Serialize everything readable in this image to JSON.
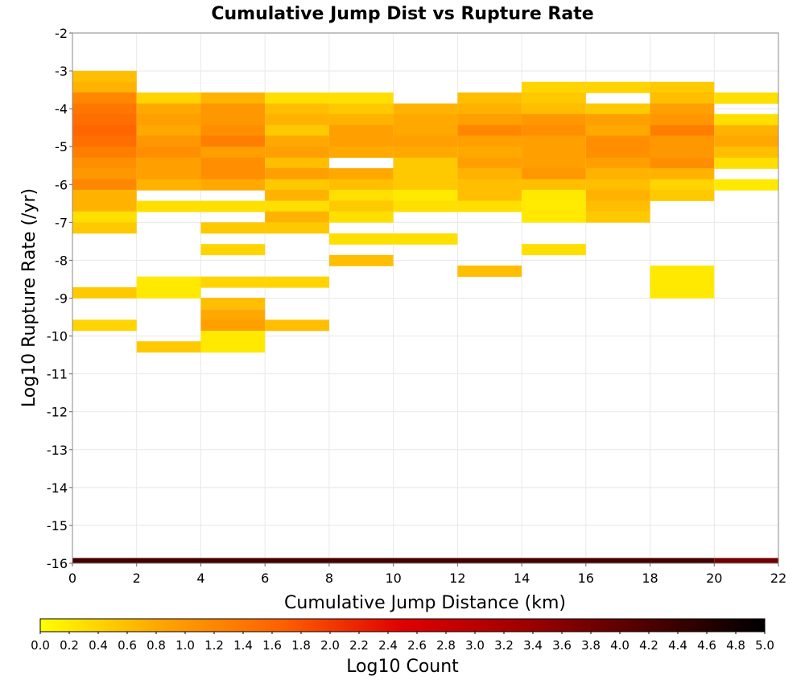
{
  "chart_data": {
    "type": "heatmap",
    "title": "Cumulative Jump Dist vs Rupture Rate",
    "xlabel": "Cumulative Jump Distance (km)",
    "ylabel": "Log10 Rupture Rate (/yr)",
    "xlim": [
      0,
      22
    ],
    "ylim": [
      -16,
      -2
    ],
    "xticks": [
      "0",
      "2",
      "4",
      "6",
      "8",
      "10",
      "12",
      "14",
      "16",
      "18",
      "20",
      "22"
    ],
    "yticks": [
      "-2",
      "-3",
      "-4",
      "-5",
      "-6",
      "-7",
      "-8",
      "-9",
      "-10",
      "-11",
      "-12",
      "-13",
      "-14",
      "-15",
      "-16"
    ],
    "grid": true,
    "colorbar": {
      "label": "Log10 Count",
      "range": [
        0.0,
        5.0
      ],
      "ticks": [
        "0.0",
        "0.2",
        "0.4",
        "0.6",
        "0.8",
        "1.0",
        "1.2",
        "1.4",
        "1.6",
        "1.8",
        "2.0",
        "2.2",
        "2.4",
        "2.6",
        "2.8",
        "3.0",
        "3.2",
        "3.4",
        "3.6",
        "3.8",
        "4.0",
        "4.2",
        "4.4",
        "4.6",
        "4.8",
        "5.0"
      ],
      "colors": [
        "#ffff00",
        "#ffa500",
        "#ff6000",
        "#e00000",
        "#a00000",
        "#500000",
        "#000000"
      ]
    },
    "x_bin_width": 2,
    "y_bin_height": 0.286,
    "columns": [
      {
        "x0": 0,
        "cells": [
          {
            "y": -3.0,
            "v": 0.6
          },
          {
            "y": -3.29,
            "v": 0.7
          },
          {
            "y": -3.57,
            "v": 1.2
          },
          {
            "y": -3.86,
            "v": 1.4
          },
          {
            "y": -4.14,
            "v": 1.5
          },
          {
            "y": -4.43,
            "v": 1.6
          },
          {
            "y": -4.71,
            "v": 1.5
          },
          {
            "y": -5.0,
            "v": 1.3
          },
          {
            "y": -5.29,
            "v": 1.1
          },
          {
            "y": -5.57,
            "v": 1.0
          },
          {
            "y": -5.86,
            "v": 1.2
          },
          {
            "y": -6.14,
            "v": 0.7
          },
          {
            "y": -6.43,
            "v": 0.7
          },
          {
            "y": -6.71,
            "v": 0.3
          },
          {
            "y": -7.0,
            "v": 0.5
          },
          {
            "y": -8.71,
            "v": 0.5
          },
          {
            "y": -9.57,
            "v": 0.4
          }
        ]
      },
      {
        "x0": 2,
        "cells": [
          {
            "y": -3.57,
            "v": 0.4
          },
          {
            "y": -3.86,
            "v": 0.8
          },
          {
            "y": -4.14,
            "v": 0.9
          },
          {
            "y": -4.43,
            "v": 0.8
          },
          {
            "y": -4.71,
            "v": 1.0
          },
          {
            "y": -5.0,
            "v": 1.1
          },
          {
            "y": -5.29,
            "v": 0.9
          },
          {
            "y": -5.57,
            "v": 0.9
          },
          {
            "y": -5.86,
            "v": 0.7
          },
          {
            "y": -6.43,
            "v": 0.3
          },
          {
            "y": -8.43,
            "v": 0.2
          },
          {
            "y": -8.71,
            "v": 0.2
          },
          {
            "y": -10.14,
            "v": 0.5
          }
        ]
      },
      {
        "x0": 4,
        "cells": [
          {
            "y": -3.57,
            "v": 0.7
          },
          {
            "y": -3.86,
            "v": 1.0
          },
          {
            "y": -4.14,
            "v": 1.0
          },
          {
            "y": -4.43,
            "v": 1.1
          },
          {
            "y": -4.71,
            "v": 1.3
          },
          {
            "y": -5.0,
            "v": 0.9
          },
          {
            "y": -5.29,
            "v": 1.1
          },
          {
            "y": -5.57,
            "v": 1.1
          },
          {
            "y": -5.86,
            "v": 0.8
          },
          {
            "y": -6.43,
            "v": 0.3
          },
          {
            "y": -7.0,
            "v": 0.5
          },
          {
            "y": -7.57,
            "v": 0.4
          },
          {
            "y": -8.43,
            "v": 0.4
          },
          {
            "y": -8.99,
            "v": 0.6
          },
          {
            "y": -9.29,
            "v": 0.8
          },
          {
            "y": -9.57,
            "v": 0.9
          },
          {
            "y": -9.86,
            "v": 0.2
          },
          {
            "y": -10.14,
            "v": 0.2
          }
        ]
      },
      {
        "x0": 6,
        "cells": [
          {
            "y": -3.57,
            "v": 0.3
          },
          {
            "y": -3.86,
            "v": 0.6
          },
          {
            "y": -4.14,
            "v": 0.7
          },
          {
            "y": -4.43,
            "v": 0.5
          },
          {
            "y": -4.71,
            "v": 0.8
          },
          {
            "y": -5.0,
            "v": 0.9
          },
          {
            "y": -5.29,
            "v": 0.6
          },
          {
            "y": -5.57,
            "v": 0.9
          },
          {
            "y": -5.86,
            "v": 0.5
          },
          {
            "y": -6.14,
            "v": 0.7
          },
          {
            "y": -6.43,
            "v": 0.3
          },
          {
            "y": -6.71,
            "v": 0.7
          },
          {
            "y": -7.0,
            "v": 0.5
          },
          {
            "y": -8.43,
            "v": 0.4
          },
          {
            "y": -9.57,
            "v": 0.6
          }
        ]
      },
      {
        "x0": 8,
        "cells": [
          {
            "y": -3.57,
            "v": 0.3
          },
          {
            "y": -3.86,
            "v": 0.5
          },
          {
            "y": -4.14,
            "v": 0.7
          },
          {
            "y": -4.43,
            "v": 0.9
          },
          {
            "y": -4.71,
            "v": 0.9
          },
          {
            "y": -5.0,
            "v": 0.8
          },
          {
            "y": -5.57,
            "v": 0.8
          },
          {
            "y": -5.86,
            "v": 0.6
          },
          {
            "y": -6.14,
            "v": 0.3
          },
          {
            "y": -6.43,
            "v": 0.5
          },
          {
            "y": -6.71,
            "v": 0.3
          },
          {
            "y": -7.29,
            "v": 0.3
          },
          {
            "y": -7.86,
            "v": 0.6
          }
        ]
      },
      {
        "x0": 10,
        "cells": [
          {
            "y": -3.86,
            "v": 0.7
          },
          {
            "y": -4.14,
            "v": 0.8
          },
          {
            "y": -4.43,
            "v": 0.8
          },
          {
            "y": -4.71,
            "v": 0.9
          },
          {
            "y": -5.0,
            "v": 0.8
          },
          {
            "y": -5.29,
            "v": 0.5
          },
          {
            "y": -5.57,
            "v": 0.5
          },
          {
            "y": -5.86,
            "v": 0.5
          },
          {
            "y": -6.14,
            "v": 0.2
          },
          {
            "y": -6.43,
            "v": 0.3
          },
          {
            "y": -7.29,
            "v": 0.3
          }
        ]
      },
      {
        "x0": 12,
        "cells": [
          {
            "y": -3.57,
            "v": 0.6
          },
          {
            "y": -3.86,
            "v": 0.7
          },
          {
            "y": -4.14,
            "v": 0.9
          },
          {
            "y": -4.43,
            "v": 1.2
          },
          {
            "y": -4.71,
            "v": 0.9
          },
          {
            "y": -5.0,
            "v": 0.8
          },
          {
            "y": -5.29,
            "v": 0.9
          },
          {
            "y": -5.57,
            "v": 0.7
          },
          {
            "y": -5.86,
            "v": 0.6
          },
          {
            "y": -6.14,
            "v": 0.6
          },
          {
            "y": -6.43,
            "v": 0.3
          },
          {
            "y": -8.14,
            "v": 0.6
          }
        ]
      },
      {
        "x0": 14,
        "cells": [
          {
            "y": -3.29,
            "v": 0.4
          },
          {
            "y": -3.57,
            "v": 0.5
          },
          {
            "y": -3.86,
            "v": 0.6
          },
          {
            "y": -4.14,
            "v": 1.0
          },
          {
            "y": -4.43,
            "v": 1.1
          },
          {
            "y": -4.71,
            "v": 0.9
          },
          {
            "y": -5.0,
            "v": 0.9
          },
          {
            "y": -5.29,
            "v": 0.9
          },
          {
            "y": -5.57,
            "v": 1.0
          },
          {
            "y": -5.86,
            "v": 0.6
          },
          {
            "y": -6.14,
            "v": 0.2
          },
          {
            "y": -6.43,
            "v": 0.2
          },
          {
            "y": -6.71,
            "v": 0.2
          },
          {
            "y": -7.57,
            "v": 0.3
          }
        ]
      },
      {
        "x0": 16,
        "cells": [
          {
            "y": -3.29,
            "v": 0.4
          },
          {
            "y": -3.86,
            "v": 0.5
          },
          {
            "y": -4.14,
            "v": 0.9
          },
          {
            "y": -4.43,
            "v": 0.8
          },
          {
            "y": -4.71,
            "v": 1.1
          },
          {
            "y": -5.0,
            "v": 1.1
          },
          {
            "y": -5.29,
            "v": 0.9
          },
          {
            "y": -5.57,
            "v": 0.7
          },
          {
            "y": -5.86,
            "v": 0.6
          },
          {
            "y": -6.14,
            "v": 0.7
          },
          {
            "y": -6.43,
            "v": 0.6
          },
          {
            "y": -6.71,
            "v": 0.5
          }
        ]
      },
      {
        "x0": 18,
        "cells": [
          {
            "y": -3.29,
            "v": 0.5
          },
          {
            "y": -3.57,
            "v": 0.6
          },
          {
            "y": -3.86,
            "v": 0.9
          },
          {
            "y": -4.14,
            "v": 1.0
          },
          {
            "y": -4.43,
            "v": 1.3
          },
          {
            "y": -4.71,
            "v": 1.0
          },
          {
            "y": -5.0,
            "v": 1.0
          },
          {
            "y": -5.29,
            "v": 1.1
          },
          {
            "y": -5.57,
            "v": 0.7
          },
          {
            "y": -5.86,
            "v": 0.4
          },
          {
            "y": -6.14,
            "v": 0.5
          },
          {
            "y": -8.14,
            "v": 0.2
          },
          {
            "y": -8.43,
            "v": 0.2
          },
          {
            "y": -8.71,
            "v": 0.2
          }
        ]
      },
      {
        "x0": 20,
        "cells": [
          {
            "y": -3.57,
            "v": 0.3
          },
          {
            "y": -4.14,
            "v": 0.3
          },
          {
            "y": -4.43,
            "v": 0.7
          },
          {
            "y": -4.71,
            "v": 0.8
          },
          {
            "y": -5.0,
            "v": 0.6
          },
          {
            "y": -5.29,
            "v": 0.3
          },
          {
            "y": -5.86,
            "v": 0.2
          }
        ]
      }
    ],
    "bottom_band": {
      "y0": -16.0,
      "y1": -15.86,
      "segments": [
        {
          "x0": 0,
          "x1": 20,
          "v": 4.3
        },
        {
          "x0": 20,
          "x1": 22,
          "v": 3.8
        }
      ]
    }
  }
}
